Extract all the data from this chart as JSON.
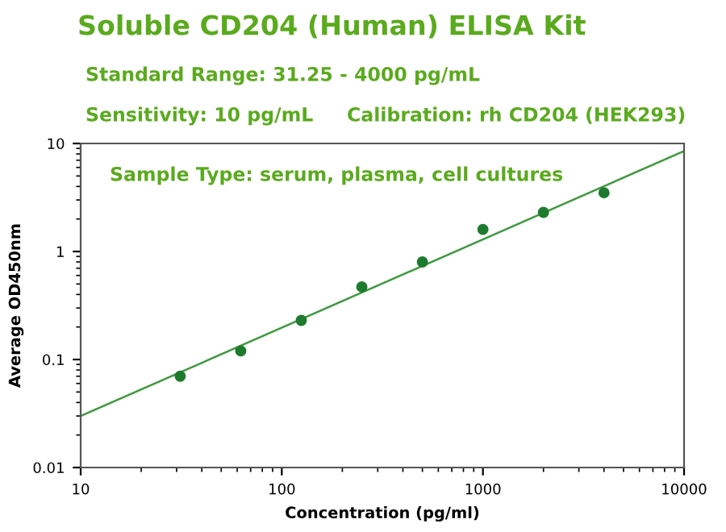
{
  "chart_data": {
    "type": "scatter",
    "title": "Soluble CD204 (Human) ELISA Kit",
    "xlabel": "Concentration (pg/ml)",
    "ylabel": "Average OD450nm",
    "log": "xy",
    "xlim": [
      10,
      10000
    ],
    "ylim": [
      0.01,
      10
    ],
    "xticks": [
      10,
      100,
      1000,
      10000
    ],
    "yticks": [
      {
        "value": 0.01,
        "label": "0.01"
      },
      {
        "value": 0.1,
        "label": "0.1"
      },
      {
        "value": 1,
        "label": "1"
      },
      {
        "value": 10,
        "label": "10"
      }
    ],
    "grid": false,
    "annotations": [
      "Standard Range: 31.25 - 4000 pg/mL",
      "Sensitivity: 10 pg/mL",
      "Calibration: rh CD204 (HEK293)",
      "Sample Type: serum, plasma, cell cultures"
    ],
    "series": [
      {
        "marker": "circle",
        "color": "#1e7b2e",
        "x": [
          31.25,
          62.5,
          125,
          250,
          500,
          1000,
          2000,
          4000
        ],
        "values": [
          0.07,
          0.12,
          0.23,
          0.47,
          0.8,
          1.6,
          2.3,
          3.5
        ]
      },
      {
        "type": "line",
        "color": "#3f9a3f",
        "line_style": "solid",
        "marker": "none",
        "x": [
          10,
          10000
        ],
        "values": [
          0.03,
          8.5
        ]
      }
    ]
  }
}
